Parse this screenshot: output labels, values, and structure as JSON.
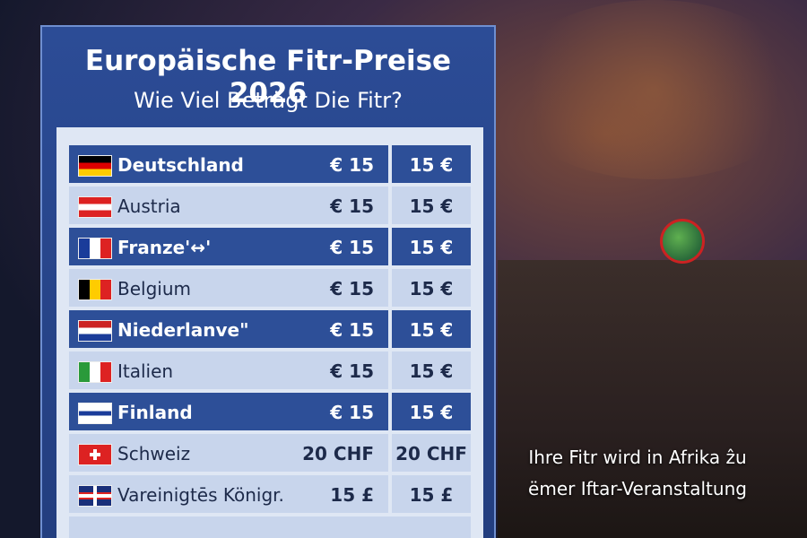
{
  "header": {
    "title": "Europäische Fitr-Preise 2026",
    "subtitle": "Wie Viel Beträgt Die Fitr?"
  },
  "table": {
    "rows": [
      {
        "country": "Deutschland",
        "price_1": "€ 15",
        "price_2": "15 €"
      },
      {
        "country": "Austria",
        "price_1": "€ 15",
        "price_2": "15 €"
      },
      {
        "country": "Franze'↔'",
        "price_1": "€ 15",
        "price_2": "15 €"
      },
      {
        "country": "Belgium",
        "price_1": "€ 15",
        "price_2": "15 €"
      },
      {
        "country": "Niederlanve\"",
        "price_1": "€ 15",
        "price_2": "15 €"
      },
      {
        "country": "Italien",
        "price_1": "€ 15",
        "price_2": "15 €"
      },
      {
        "country": "Finland",
        "price_1": "€ 15",
        "price_2": "15 €"
      },
      {
        "country": "Schweiz",
        "price_1": "20 CHF",
        "price_2": "20 CHF"
      },
      {
        "country": "Vareinigtēs Königr.",
        "price_1": "15 £",
        "price_2": "15 £"
      }
    ]
  },
  "caption": {
    "line_1": "Ihre Fitr wird in Afrika ẑu",
    "line_2": "ëmer Iftar-Veranstaltung"
  }
}
